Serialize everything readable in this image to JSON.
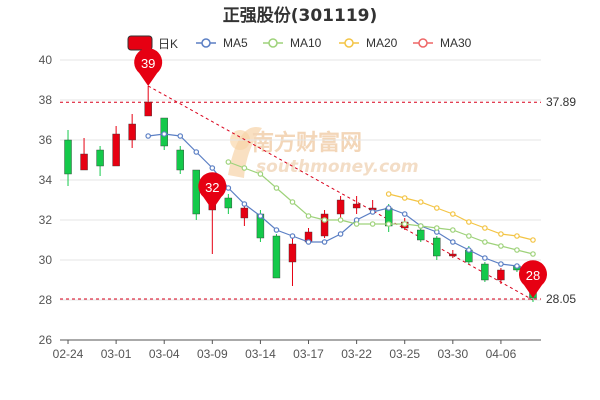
{
  "chart_data": {
    "type": "candlestick",
    "title": "正强股份(301119)",
    "legend": [
      {
        "label": "日K",
        "color": "#e60012",
        "kind": "candle"
      },
      {
        "label": "MA5",
        "color": "#5b7fc4",
        "kind": "line"
      },
      {
        "label": "MA10",
        "color": "#9ed27a",
        "kind": "line"
      },
      {
        "label": "MA20",
        "color": "#f3c444",
        "kind": "line"
      },
      {
        "label": "MA30",
        "color": "#ee6666",
        "kind": "line"
      }
    ],
    "legend_position": "top-center",
    "ylim": [
      26,
      40
    ],
    "yticks": [
      26,
      28,
      30,
      32,
      34,
      36,
      38,
      40
    ],
    "xtick_labels": [
      {
        "index": 0,
        "label": "02-24"
      },
      {
        "index": 3,
        "label": "03-01"
      },
      {
        "index": 6,
        "label": "03-04"
      },
      {
        "index": 9,
        "label": "03-09"
      },
      {
        "index": 12,
        "label": "03-14"
      },
      {
        "index": 15,
        "label": "03-17"
      },
      {
        "index": 18,
        "label": "03-22"
      },
      {
        "index": 21,
        "label": "03-25"
      },
      {
        "index": 24,
        "label": "03-30"
      },
      {
        "index": 27,
        "label": "04-06"
      }
    ],
    "grid": "horizontal",
    "up_color": "#e60012",
    "down_color": "#14c94a",
    "candles": [
      {
        "open": 36.0,
        "close": 34.3,
        "high": 36.5,
        "low": 33.7
      },
      {
        "open": 34.5,
        "close": 35.3,
        "high": 36.1,
        "low": 34.5
      },
      {
        "open": 35.5,
        "close": 34.7,
        "high": 35.7,
        "low": 34.2
      },
      {
        "open": 34.7,
        "close": 36.3,
        "high": 36.7,
        "low": 34.7
      },
      {
        "open": 36.0,
        "close": 36.8,
        "high": 37.3,
        "low": 35.6
      },
      {
        "open": 37.2,
        "close": 37.9,
        "high": 38.7,
        "low": 37.2
      },
      {
        "open": 37.1,
        "close": 35.7,
        "high": 37.1,
        "low": 35.5
      },
      {
        "open": 35.5,
        "close": 34.5,
        "high": 35.7,
        "low": 34.3
      },
      {
        "open": 34.5,
        "close": 32.3,
        "high": 34.5,
        "low": 32.0
      },
      {
        "open": 32.5,
        "close": 32.8,
        "high": 33.3,
        "low": 30.3
      },
      {
        "open": 33.1,
        "close": 32.6,
        "high": 33.3,
        "low": 32.3
      },
      {
        "open": 32.1,
        "close": 32.6,
        "high": 32.9,
        "low": 31.7
      },
      {
        "open": 32.3,
        "close": 31.1,
        "high": 32.5,
        "low": 30.9
      },
      {
        "open": 31.2,
        "close": 29.1,
        "high": 31.3,
        "low": 29.1
      },
      {
        "open": 29.9,
        "close": 30.8,
        "high": 31.1,
        "low": 28.7
      },
      {
        "open": 30.9,
        "close": 31.4,
        "high": 31.6,
        "low": 30.9
      },
      {
        "open": 31.2,
        "close": 32.3,
        "high": 32.5,
        "low": 31.1
      },
      {
        "open": 32.3,
        "close": 33.0,
        "high": 33.2,
        "low": 32.1
      },
      {
        "open": 32.6,
        "close": 32.8,
        "high": 33.2,
        "low": 32.3
      },
      {
        "open": 32.5,
        "close": 32.6,
        "high": 33.0,
        "low": 32.3
      },
      {
        "open": 32.6,
        "close": 31.7,
        "high": 32.8,
        "low": 31.4
      },
      {
        "open": 31.6,
        "close": 31.9,
        "high": 32.1,
        "low": 31.5
      },
      {
        "open": 31.5,
        "close": 31.0,
        "high": 31.7,
        "low": 30.9
      },
      {
        "open": 31.1,
        "close": 30.2,
        "high": 31.2,
        "low": 30.0
      },
      {
        "open": 30.2,
        "close": 30.3,
        "high": 30.5,
        "low": 30.1
      },
      {
        "open": 30.5,
        "close": 29.9,
        "high": 30.7,
        "low": 29.8
      },
      {
        "open": 29.8,
        "close": 29.0,
        "high": 29.9,
        "low": 28.9
      },
      {
        "open": 29.0,
        "close": 29.5,
        "high": 29.6,
        "low": 28.8
      },
      {
        "open": 29.7,
        "close": 29.5,
        "high": 29.8,
        "low": 29.4
      },
      {
        "open": 29.3,
        "close": 28.1,
        "high": 29.4,
        "low": 27.9
      }
    ],
    "series": [
      {
        "name": "MA5",
        "color": "#5b7fc4",
        "start_index": 5,
        "values": [
          36.2,
          36.3,
          36.2,
          35.4,
          34.6,
          33.6,
          32.8,
          32.2,
          31.5,
          31.2,
          30.9,
          30.9,
          31.3,
          32.0,
          32.4,
          32.6,
          32.3,
          31.7,
          31.4,
          30.9,
          30.5,
          30.1,
          29.8,
          29.7,
          29.4
        ]
      },
      {
        "name": "MA10",
        "color": "#9ed27a",
        "start_index": 10,
        "values": [
          34.9,
          34.6,
          34.3,
          33.6,
          32.9,
          32.2,
          32.0,
          32.0,
          31.8,
          31.8,
          31.8,
          31.8,
          31.7,
          31.6,
          31.5,
          31.2,
          30.9,
          30.7,
          30.5,
          30.3
        ]
      },
      {
        "name": "MA20",
        "color": "#f3c444",
        "start_index": 20,
        "values": [
          33.3,
          33.1,
          32.9,
          32.6,
          32.3,
          31.9,
          31.6,
          31.3,
          31.2,
          31.0
        ]
      },
      {
        "name": "MA30",
        "color": "#ee6666",
        "start_index": 29,
        "values": []
      }
    ],
    "reference_lines": [
      {
        "value": 37.89,
        "label": "37.89"
      },
      {
        "value": 28.05,
        "label": "28.05"
      }
    ],
    "trend_line": {
      "from_index": 5,
      "from_value": 38.7,
      "to_index": 29,
      "to_value": 28.0
    },
    "markers": [
      {
        "label": "39",
        "index": 5,
        "value": 38.7
      },
      {
        "label": "32",
        "index": 9,
        "value": 32.5
      },
      {
        "label": "28",
        "index": 29,
        "value": 28.1
      }
    ],
    "watermark": {
      "text": "南方财富网",
      "subtext": "southmoney.com"
    }
  }
}
